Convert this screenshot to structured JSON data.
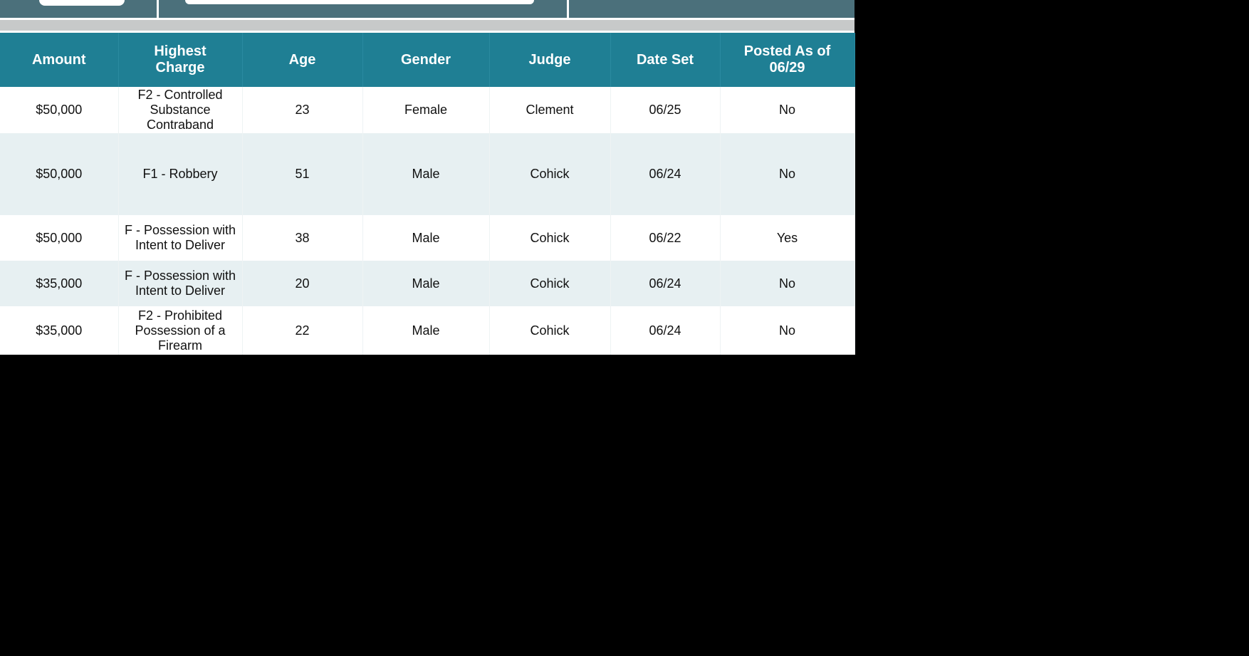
{
  "table": {
    "header": [
      "Amount",
      "Highest Charge",
      "Age",
      "Gender",
      "Judge",
      "Date Set",
      "Posted As of 06/29"
    ],
    "rows": [
      [
        "$50,000",
        "F2 - Controlled Substance Contraband",
        "23",
        "Female",
        "Clement",
        "06/25",
        "No"
      ],
      [
        "$50,000",
        "F1 - Robbery",
        "51",
        "Male",
        "Cohick",
        "06/24",
        "No"
      ],
      [
        "$50,000",
        "F - Possession with Intent to Deliver",
        "38",
        "Male",
        "Cohick",
        "06/22",
        "Yes"
      ],
      [
        "$35,000",
        "F - Possession with Intent to Deliver",
        "20",
        "Male",
        "Cohick",
        "06/24",
        "No"
      ],
      [
        "$35,000",
        "F2 - Prohibited Possession of a Firearm",
        "22",
        "Male",
        "Cohick",
        "06/24",
        "No"
      ]
    ]
  }
}
